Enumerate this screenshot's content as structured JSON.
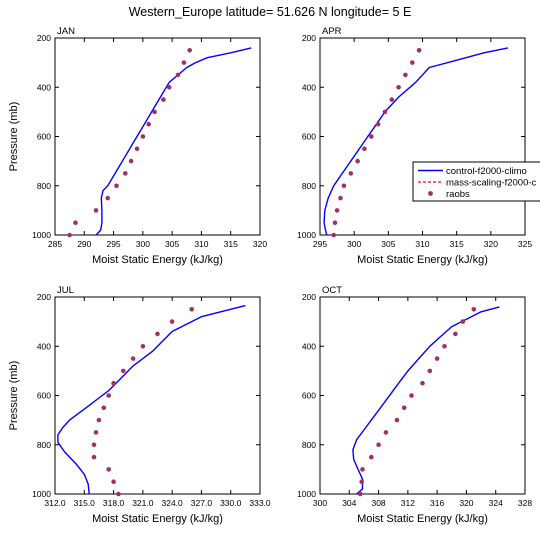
{
  "title": "Western_Europe  latitude= 51.626 N longitude= 5 E",
  "legend": {
    "entries": [
      "control-f2000-climo",
      "mass-scaling-f2000-c",
      "raobs"
    ],
    "colors": [
      "#0000ff",
      "#ff0000",
      "#a0306a"
    ]
  },
  "chart_data": [
    {
      "type": "line",
      "panel_label": "JAN",
      "xlabel": "Moist Static Energy (kJ/kg)",
      "ylabel": "Pressure (mb)",
      "xlim": [
        285,
        320
      ],
      "ylim": [
        1000,
        200
      ],
      "xticks": [
        285,
        290,
        295,
        300,
        305,
        310,
        315,
        320
      ],
      "xtick_labels": [
        "285",
        "290",
        "295",
        "300",
        "305",
        "310",
        "315",
        "320"
      ],
      "yticks": [
        200,
        400,
        600,
        800,
        1000
      ],
      "ytick_labels": [
        "200",
        "400",
        "600",
        "800",
        "1000"
      ],
      "series": [
        {
          "name": "control-f2000-climo",
          "style": "line",
          "color": "#0000ff",
          "x": [
            292.0,
            292.8,
            293.0,
            293.0,
            292.9,
            293.2,
            294.0,
            295.0,
            296.0,
            297.0,
            298.0,
            299.0,
            300.0,
            301.0,
            302.0,
            303.0,
            304.5,
            306.0,
            307.5,
            309.0,
            311.0,
            315.0,
            318.5
          ],
          "y": [
            1000,
            980,
            950,
            900,
            850,
            820,
            800,
            760,
            720,
            680,
            640,
            600,
            560,
            520,
            480,
            440,
            380,
            350,
            320,
            300,
            280,
            260,
            240
          ]
        },
        {
          "name": "raobs",
          "style": "markers",
          "color": "#a0306a",
          "x": [
            287.5,
            288.5,
            292.0,
            294.0,
            295.5,
            297.0,
            298.0,
            299.0,
            300.0,
            301.0,
            302.0,
            303.5,
            304.5,
            306.0,
            307.0,
            308.0
          ],
          "y": [
            1000,
            950,
            900,
            850,
            800,
            750,
            700,
            650,
            600,
            550,
            500,
            450,
            400,
            350,
            300,
            250
          ]
        }
      ]
    },
    {
      "type": "line",
      "panel_label": "APR",
      "xlabel": "Moist Static Energy (kJ/kg)",
      "ylabel": "",
      "xlim": [
        295,
        325
      ],
      "ylim": [
        1000,
        200
      ],
      "xticks": [
        295,
        300,
        305,
        310,
        315,
        320,
        325
      ],
      "xtick_labels": [
        "295",
        "300",
        "305",
        "310",
        "315",
        "320",
        "325"
      ],
      "yticks": [
        200,
        400,
        600,
        800,
        1000
      ],
      "ytick_labels": [
        "200",
        "400",
        "600",
        "800",
        "1000"
      ],
      "series": [
        {
          "name": "control-f2000-climo",
          "style": "line",
          "color": "#0000ff",
          "x": [
            296.0,
            295.8,
            295.6,
            295.7,
            296.2,
            297.0,
            298.0,
            299.0,
            300.0,
            301.0,
            302.0,
            303.0,
            304.5,
            306.5,
            309.0,
            311.0,
            315.0,
            319.0,
            322.5
          ],
          "y": [
            1000,
            980,
            950,
            900,
            850,
            800,
            760,
            720,
            680,
            640,
            600,
            560,
            500,
            440,
            380,
            320,
            290,
            260,
            240
          ]
        },
        {
          "name": "raobs",
          "style": "markers",
          "color": "#a0306a",
          "x": [
            297.0,
            297.2,
            297.5,
            298.0,
            298.5,
            299.5,
            300.5,
            301.5,
            302.5,
            303.5,
            304.5,
            305.5,
            306.5,
            307.5,
            308.5,
            309.5
          ],
          "y": [
            1000,
            950,
            900,
            850,
            800,
            750,
            700,
            650,
            600,
            550,
            500,
            450,
            400,
            350,
            300,
            250
          ]
        }
      ]
    },
    {
      "type": "line",
      "panel_label": "JUL",
      "xlabel": "Moist Static Energy (kJ/kg)",
      "ylabel": "Pressure (mb)",
      "xlim": [
        312.0,
        333.0
      ],
      "ylim": [
        1000,
        200
      ],
      "xticks": [
        312.0,
        315.0,
        318.0,
        321.0,
        324.0,
        327.0,
        330.0,
        333.0
      ],
      "xtick_labels": [
        "312.0",
        "315.0",
        "318.0",
        "321.0",
        "324.0",
        "327.0",
        "330.0",
        "333.0"
      ],
      "yticks": [
        200,
        400,
        600,
        800,
        1000
      ],
      "ytick_labels": [
        "200",
        "400",
        "600",
        "800",
        "1000"
      ],
      "series": [
        {
          "name": "control-f2000-climo",
          "style": "line",
          "color": "#0000ff",
          "x": [
            315.5,
            315.4,
            315.0,
            314.2,
            313.0,
            312.3,
            312.3,
            312.8,
            313.5,
            314.5,
            315.5,
            316.5,
            317.5,
            318.5,
            320.0,
            322.0,
            324.0,
            327.0,
            331.5
          ],
          "y": [
            1000,
            960,
            920,
            880,
            830,
            790,
            760,
            730,
            700,
            670,
            640,
            610,
            580,
            540,
            480,
            420,
            340,
            280,
            235
          ]
        },
        {
          "name": "raobs",
          "style": "markers",
          "color": "#a0306a",
          "x": [
            318.5,
            318.0,
            317.5,
            316.0,
            316.0,
            316.2,
            316.5,
            317.0,
            317.5,
            318.0,
            319.0,
            320.0,
            321.0,
            322.5,
            324.0,
            326.0
          ],
          "y": [
            1000,
            950,
            900,
            850,
            800,
            750,
            700,
            650,
            600,
            550,
            500,
            450,
            400,
            350,
            300,
            250
          ]
        }
      ]
    },
    {
      "type": "line",
      "panel_label": "OCT",
      "xlabel": "Moist Static Energy (kJ/kg)",
      "ylabel": "",
      "xlim": [
        300,
        328
      ],
      "ylim": [
        1000,
        200
      ],
      "xticks": [
        300,
        304,
        308,
        312,
        316,
        320,
        324,
        328
      ],
      "xtick_labels": [
        "300",
        "304",
        "308",
        "312",
        "316",
        "320",
        "324",
        "328"
      ],
      "yticks": [
        200,
        400,
        600,
        800,
        1000
      ],
      "ytick_labels": [
        "200",
        "400",
        "600",
        "800",
        "1000"
      ],
      "series": [
        {
          "name": "control-f2000-climo",
          "style": "line",
          "color": "#0000ff",
          "x": [
            305.0,
            305.8,
            305.8,
            305.2,
            304.6,
            304.5,
            305.0,
            306.0,
            307.0,
            308.0,
            309.0,
            310.0,
            311.0,
            312.0,
            313.5,
            315.0,
            316.5,
            318.0,
            320.0,
            322.0,
            324.5
          ],
          "y": [
            1000,
            980,
            940,
            900,
            860,
            820,
            780,
            740,
            700,
            660,
            620,
            580,
            540,
            500,
            450,
            400,
            360,
            320,
            290,
            260,
            240
          ]
        },
        {
          "name": "raobs",
          "style": "markers",
          "color": "#a0306a",
          "x": [
            305.5,
            305.7,
            305.8,
            307.0,
            308.0,
            309.0,
            310.5,
            311.5,
            312.5,
            314.0,
            315.0,
            316.0,
            317.0,
            318.5,
            319.5,
            321.0
          ],
          "y": [
            1000,
            950,
            900,
            850,
            800,
            750,
            700,
            650,
            600,
            550,
            500,
            450,
            400,
            350,
            300,
            250
          ]
        }
      ]
    }
  ]
}
